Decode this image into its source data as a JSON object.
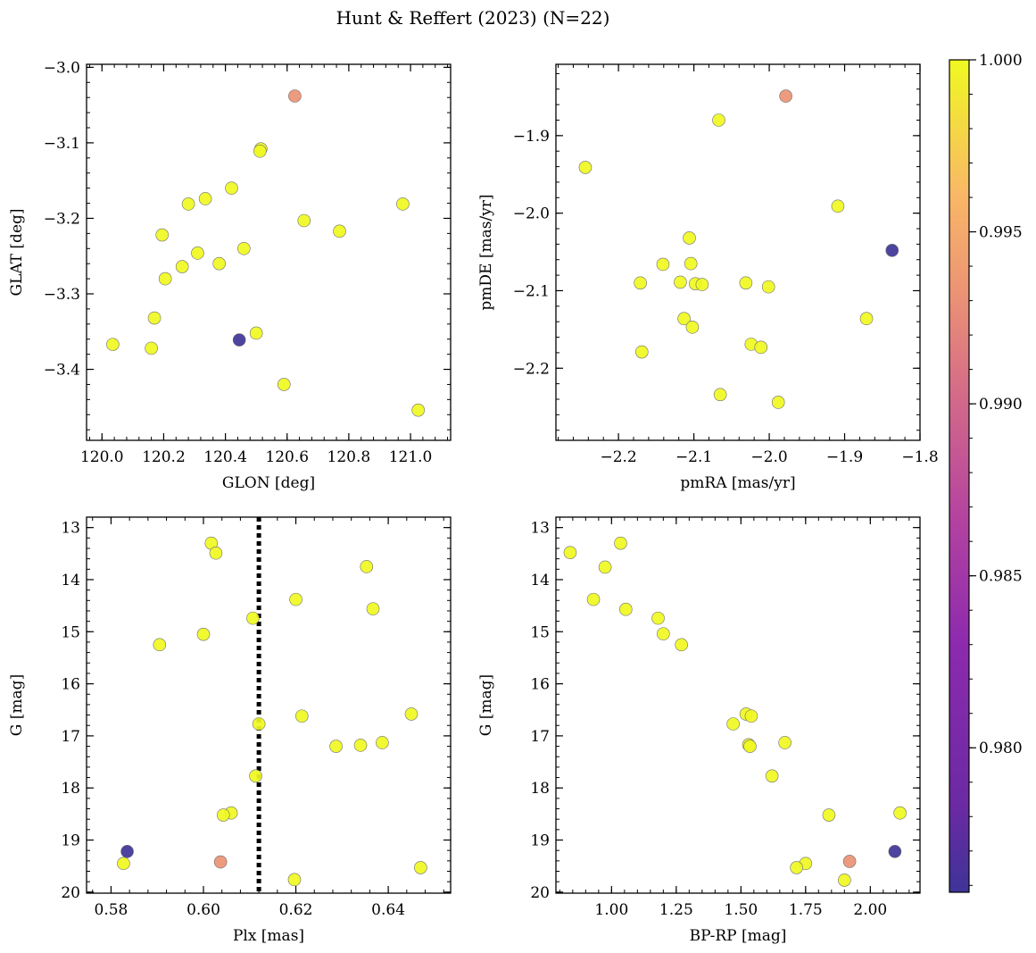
{
  "figure_title": "Hunt & Reffert (2023) (N=22)",
  "colorbar": {
    "vmin": 0.9758,
    "vmax": 1.0,
    "ticks": [
      0.98,
      0.985,
      0.99,
      0.995,
      1.0
    ],
    "tick_labels": [
      "0.980",
      "0.985",
      "0.990",
      "0.995",
      "1.000"
    ],
    "colormap": "plasma"
  },
  "colors": {
    "high": "#f0f921",
    "mid": "#ec9374",
    "low": "#3e3497"
  },
  "chart_data": [
    {
      "type": "scatter",
      "xlabel": "GLON [deg]",
      "ylabel": "GLAT [deg]",
      "xlim": [
        119.95,
        121.13
      ],
      "ylim": [
        -3.494,
        -2.996
      ],
      "xticks": [
        120.0,
        120.2,
        120.4,
        120.6,
        120.8,
        121.0
      ],
      "xtick_labels": [
        "120.0",
        "120.2",
        "120.4",
        "120.6",
        "120.8",
        "121.0"
      ],
      "yticks": [
        -3.0,
        -3.1,
        -3.2,
        -3.3,
        -3.4
      ],
      "ytick_labels": [
        "−3.0",
        "−3.1",
        "−3.2",
        "−3.3",
        "−3.4"
      ],
      "y_inverted": false,
      "points": [
        {
          "x": 120.625,
          "y": -3.038,
          "c": 0.991
        },
        {
          "x": 120.515,
          "y": -3.108,
          "c": 1.0
        },
        {
          "x": 120.512,
          "y": -3.111,
          "c": 1.0
        },
        {
          "x": 120.42,
          "y": -3.16,
          "c": 1.0
        },
        {
          "x": 120.335,
          "y": -3.174,
          "c": 1.0
        },
        {
          "x": 120.28,
          "y": -3.181,
          "c": 1.0
        },
        {
          "x": 120.975,
          "y": -3.181,
          "c": 1.0
        },
        {
          "x": 120.655,
          "y": -3.203,
          "c": 1.0
        },
        {
          "x": 120.77,
          "y": -3.217,
          "c": 1.0
        },
        {
          "x": 120.195,
          "y": -3.222,
          "c": 1.0
        },
        {
          "x": 120.46,
          "y": -3.24,
          "c": 1.0
        },
        {
          "x": 120.31,
          "y": -3.246,
          "c": 1.0
        },
        {
          "x": 120.38,
          "y": -3.26,
          "c": 1.0
        },
        {
          "x": 120.26,
          "y": -3.264,
          "c": 1.0
        },
        {
          "x": 120.205,
          "y": -3.28,
          "c": 1.0
        },
        {
          "x": 120.17,
          "y": -3.332,
          "c": 1.0
        },
        {
          "x": 120.5,
          "y": -3.352,
          "c": 1.0
        },
        {
          "x": 120.445,
          "y": -3.361,
          "c": 0.9758
        },
        {
          "x": 120.035,
          "y": -3.367,
          "c": 1.0
        },
        {
          "x": 120.16,
          "y": -3.372,
          "c": 1.0
        },
        {
          "x": 120.59,
          "y": -3.42,
          "c": 1.0
        },
        {
          "x": 121.025,
          "y": -3.454,
          "c": 1.0
        }
      ]
    },
    {
      "type": "scatter",
      "xlabel": "pmRA [mas/yr]",
      "ylabel": "pmDE [mas/yr]",
      "xlim": [
        -2.283,
        -1.8
      ],
      "ylim": [
        -2.293,
        -1.808
      ],
      "xticks": [
        -2.2,
        -2.1,
        -2.0,
        -1.9,
        -1.8
      ],
      "xtick_labels": [
        "−2.2",
        "−2.1",
        "−2.0",
        "−1.9",
        "−1.8"
      ],
      "yticks": [
        -1.9,
        -2.0,
        -2.1,
        -2.2
      ],
      "ytick_labels": [
        "−1.9",
        "−2.0",
        "−2.1",
        "−2.2"
      ],
      "y_inverted": false,
      "points": [
        {
          "x": -1.978,
          "y": -1.849,
          "c": 0.991
        },
        {
          "x": -2.067,
          "y": -1.88,
          "c": 1.0
        },
        {
          "x": -2.244,
          "y": -1.941,
          "c": 1.0
        },
        {
          "x": -1.909,
          "y": -1.991,
          "c": 1.0
        },
        {
          "x": -2.106,
          "y": -2.032,
          "c": 1.0
        },
        {
          "x": -1.837,
          "y": -2.048,
          "c": 0.9758
        },
        {
          "x": -2.141,
          "y": -2.066,
          "c": 1.0
        },
        {
          "x": -2.104,
          "y": -2.065,
          "c": 1.0
        },
        {
          "x": -2.118,
          "y": -2.089,
          "c": 1.0
        },
        {
          "x": -2.171,
          "y": -2.09,
          "c": 1.0
        },
        {
          "x": -2.098,
          "y": -2.091,
          "c": 1.0
        },
        {
          "x": -2.089,
          "y": -2.092,
          "c": 1.0
        },
        {
          "x": -2.031,
          "y": -2.09,
          "c": 1.0
        },
        {
          "x": -2.001,
          "y": -2.095,
          "c": 1.0
        },
        {
          "x": -2.113,
          "y": -2.136,
          "c": 1.0
        },
        {
          "x": -1.871,
          "y": -2.136,
          "c": 1.0
        },
        {
          "x": -2.102,
          "y": -2.147,
          "c": 1.0
        },
        {
          "x": -2.024,
          "y": -2.169,
          "c": 1.0
        },
        {
          "x": -2.011,
          "y": -2.173,
          "c": 1.0
        },
        {
          "x": -2.169,
          "y": -2.179,
          "c": 1.0
        },
        {
          "x": -2.065,
          "y": -2.234,
          "c": 1.0
        },
        {
          "x": -1.988,
          "y": -2.244,
          "c": 1.0
        }
      ]
    },
    {
      "type": "scatter",
      "xlabel": "Plx [mas]",
      "ylabel": "G [mag]",
      "xlim": [
        0.5747,
        0.6535
      ],
      "ylim": [
        20.02,
        12.8
      ],
      "xticks": [
        0.58,
        0.6,
        0.62,
        0.64
      ],
      "xtick_labels": [
        "0.58",
        "0.60",
        "0.62",
        "0.64"
      ],
      "yticks": [
        13,
        14,
        15,
        16,
        17,
        18,
        19,
        20
      ],
      "ytick_labels": [
        "13",
        "14",
        "15",
        "16",
        "17",
        "18",
        "19",
        "20"
      ],
      "y_inverted": true,
      "vline": {
        "x": 0.612,
        "style": "dotted"
      },
      "points": [
        {
          "x": 0.6017,
          "y": 13.3,
          "c": 1.0
        },
        {
          "x": 0.6027,
          "y": 13.49,
          "c": 1.0
        },
        {
          "x": 0.6353,
          "y": 13.75,
          "c": 1.0
        },
        {
          "x": 0.62,
          "y": 14.38,
          "c": 1.0
        },
        {
          "x": 0.6367,
          "y": 14.56,
          "c": 1.0
        },
        {
          "x": 0.6107,
          "y": 14.74,
          "c": 1.0
        },
        {
          "x": 0.6,
          "y": 15.05,
          "c": 1.0
        },
        {
          "x": 0.5905,
          "y": 15.25,
          "c": 1.0
        },
        {
          "x": 0.645,
          "y": 16.58,
          "c": 1.0
        },
        {
          "x": 0.6213,
          "y": 16.62,
          "c": 1.0
        },
        {
          "x": 0.612,
          "y": 16.77,
          "c": 1.0
        },
        {
          "x": 0.6387,
          "y": 17.13,
          "c": 1.0
        },
        {
          "x": 0.634,
          "y": 17.18,
          "c": 1.0
        },
        {
          "x": 0.6287,
          "y": 17.2,
          "c": 1.0
        },
        {
          "x": 0.6113,
          "y": 17.77,
          "c": 1.0
        },
        {
          "x": 0.606,
          "y": 18.48,
          "c": 1.0
        },
        {
          "x": 0.6043,
          "y": 18.52,
          "c": 1.0
        },
        {
          "x": 0.5835,
          "y": 19.22,
          "c": 0.9758
        },
        {
          "x": 0.6037,
          "y": 19.42,
          "c": 0.991
        },
        {
          "x": 0.5827,
          "y": 19.45,
          "c": 1.0
        },
        {
          "x": 0.647,
          "y": 19.53,
          "c": 1.0
        },
        {
          "x": 0.6197,
          "y": 19.76,
          "c": 1.0
        }
      ]
    },
    {
      "type": "scatter",
      "xlabel": "BP-RP [mag]",
      "ylabel": "G [mag]",
      "xlim": [
        0.785,
        2.192
      ],
      "ylim": [
        20.02,
        12.8
      ],
      "xticks": [
        1.0,
        1.25,
        1.5,
        1.75,
        2.0
      ],
      "xtick_labels": [
        "1.00",
        "1.25",
        "1.50",
        "1.75",
        "2.00"
      ],
      "yticks": [
        13,
        14,
        15,
        16,
        17,
        18,
        19,
        20
      ],
      "ytick_labels": [
        "13",
        "14",
        "15",
        "16",
        "17",
        "18",
        "19",
        "20"
      ],
      "y_inverted": true,
      "points": [
        {
          "x": 1.035,
          "y": 13.3,
          "c": 1.0
        },
        {
          "x": 0.84,
          "y": 13.48,
          "c": 1.0
        },
        {
          "x": 0.975,
          "y": 13.76,
          "c": 1.0
        },
        {
          "x": 0.93,
          "y": 14.38,
          "c": 1.0
        },
        {
          "x": 1.055,
          "y": 14.57,
          "c": 1.0
        },
        {
          "x": 1.18,
          "y": 14.74,
          "c": 1.0
        },
        {
          "x": 1.2,
          "y": 15.04,
          "c": 1.0
        },
        {
          "x": 1.27,
          "y": 15.25,
          "c": 1.0
        },
        {
          "x": 1.52,
          "y": 16.58,
          "c": 1.0
        },
        {
          "x": 1.54,
          "y": 16.62,
          "c": 1.0
        },
        {
          "x": 1.47,
          "y": 16.77,
          "c": 1.0
        },
        {
          "x": 1.67,
          "y": 17.13,
          "c": 1.0
        },
        {
          "x": 1.53,
          "y": 17.17,
          "c": 1.0
        },
        {
          "x": 1.535,
          "y": 17.2,
          "c": 1.0
        },
        {
          "x": 1.62,
          "y": 17.77,
          "c": 1.0
        },
        {
          "x": 2.115,
          "y": 18.48,
          "c": 1.0
        },
        {
          "x": 1.84,
          "y": 18.52,
          "c": 1.0
        },
        {
          "x": 2.095,
          "y": 19.22,
          "c": 0.9758
        },
        {
          "x": 1.92,
          "y": 19.41,
          "c": 0.991
        },
        {
          "x": 1.75,
          "y": 19.45,
          "c": 1.0
        },
        {
          "x": 1.715,
          "y": 19.53,
          "c": 1.0
        },
        {
          "x": 1.9,
          "y": 19.77,
          "c": 1.0
        }
      ]
    }
  ]
}
